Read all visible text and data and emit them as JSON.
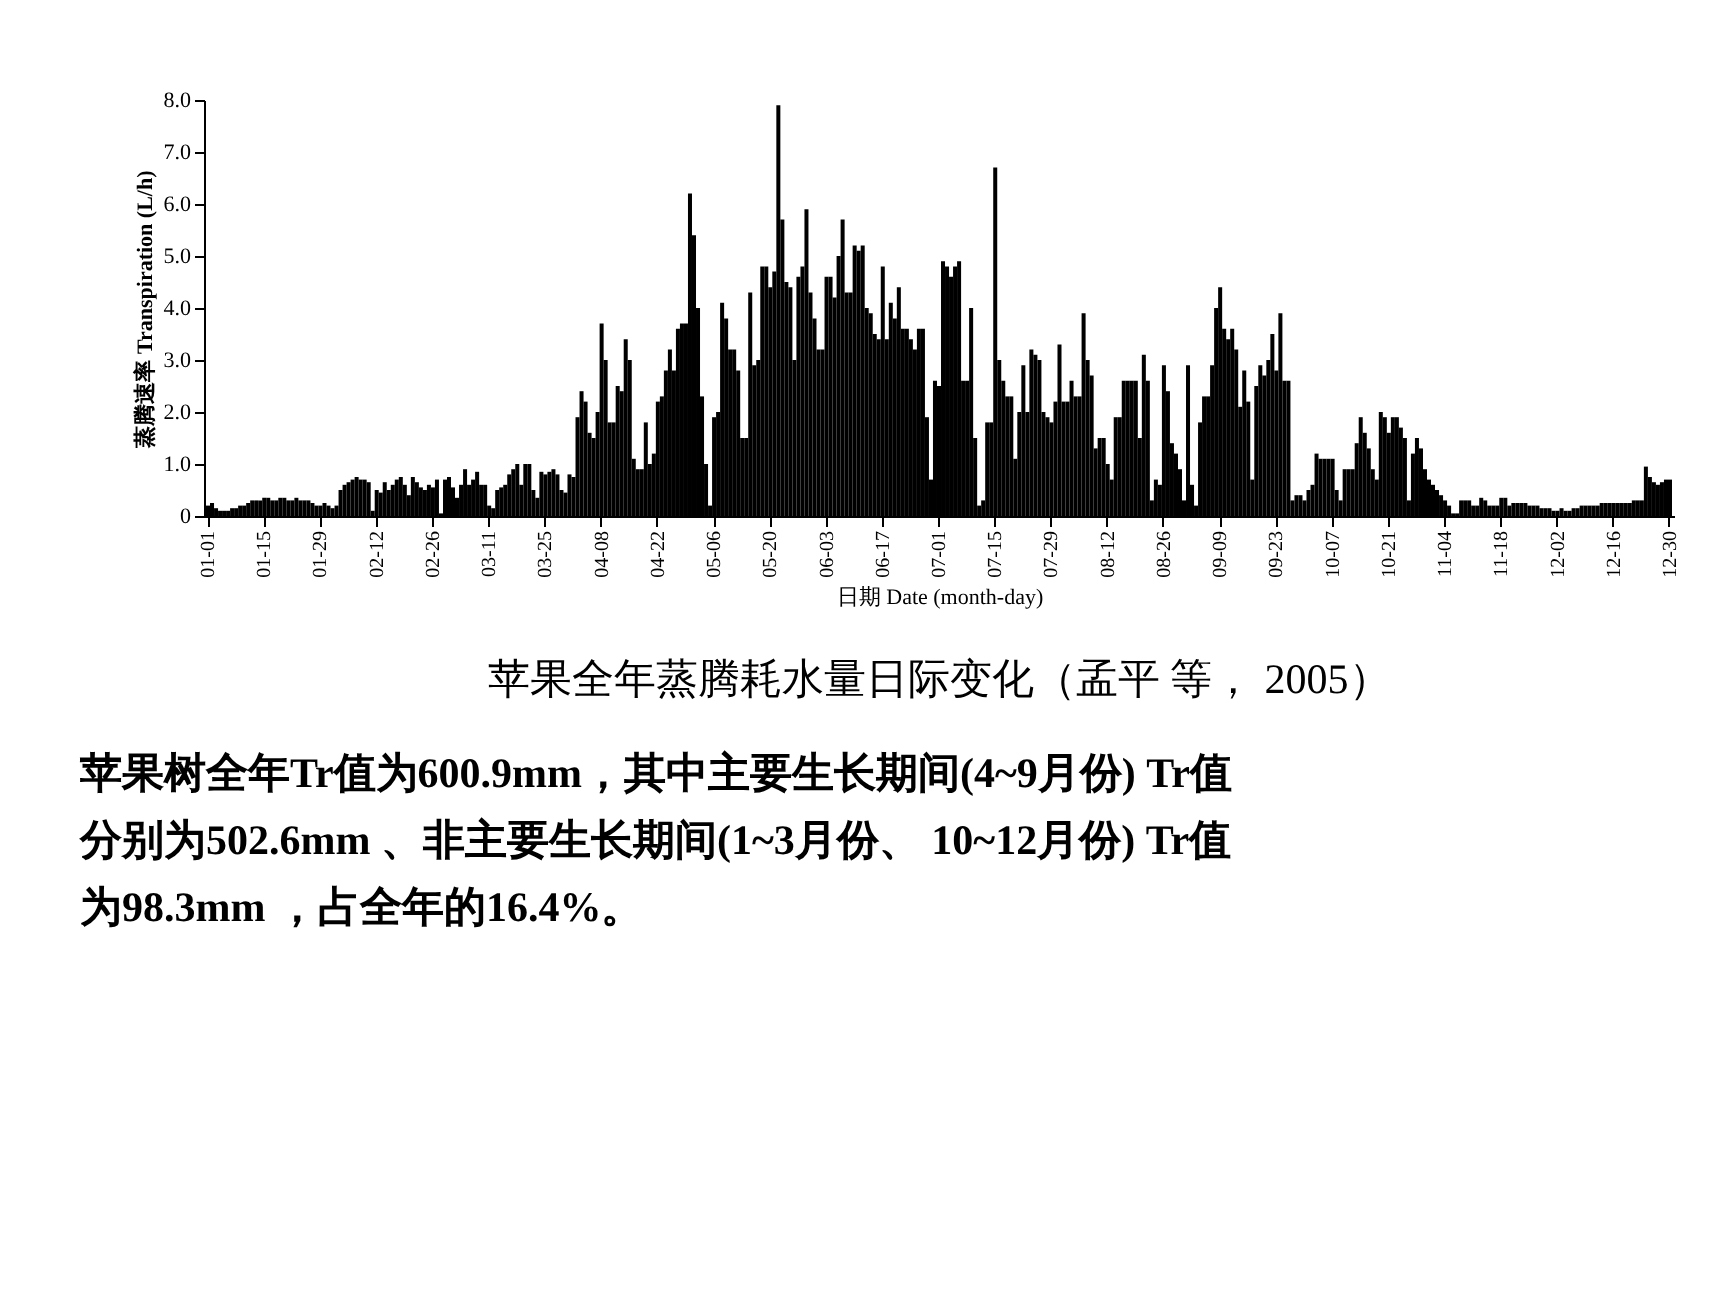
{
  "chart_data": {
    "type": "bar",
    "title": "苹果全年蒸腾耗水量日际变化（孟平 等， 2005）",
    "xlabel": "日期 Date (month-day)",
    "ylabel": "蒸腾速率 Transpiration (L/h)",
    "annotations": [
      "苹果树全年Tr值为600.9mm，其中主要生长期间(4~9月份) Tr值",
      "分别为502.6mm 、非主要生长期间(1~3月份、  10~12月份) Tr值",
      "为98.3mm ，占全年的16.4%。"
    ],
    "color": "#000000",
    "ylim": [
      0,
      8
    ],
    "yticks": [
      0,
      {
        "value": 1,
        "label": "1.0"
      },
      {
        "value": 2,
        "label": "2.0"
      },
      {
        "value": 3,
        "label": "3.0"
      },
      {
        "value": 4,
        "label": "4.0"
      },
      {
        "value": 5,
        "label": "5.0"
      },
      {
        "value": 6,
        "label": "6.0"
      },
      {
        "value": 7,
        "label": "7.0"
      },
      {
        "value": 8,
        "label": "8.0"
      }
    ],
    "categories": [
      "01-01",
      null,
      null,
      null,
      null,
      null,
      null,
      null,
      null,
      null,
      null,
      null,
      null,
      null,
      "01-15",
      null,
      null,
      null,
      null,
      null,
      null,
      null,
      null,
      null,
      null,
      null,
      null,
      null,
      "01-29",
      null,
      null,
      null,
      null,
      null,
      null,
      null,
      null,
      null,
      null,
      null,
      null,
      null,
      "02-12",
      null,
      null,
      null,
      null,
      null,
      null,
      null,
      null,
      null,
      null,
      null,
      null,
      null,
      "02-26",
      null,
      null,
      null,
      null,
      null,
      null,
      null,
      null,
      null,
      null,
      null,
      null,
      null,
      "03-11",
      null,
      null,
      null,
      null,
      null,
      null,
      null,
      null,
      null,
      null,
      null,
      null,
      null,
      "03-25",
      null,
      null,
      null,
      null,
      null,
      null,
      null,
      null,
      null,
      null,
      null,
      null,
      null,
      "04-08",
      null,
      null,
      null,
      null,
      null,
      null,
      null,
      null,
      null,
      null,
      null,
      null,
      null,
      "04-22",
      null,
      null,
      null,
      null,
      null,
      null,
      null,
      null,
      null,
      null,
      null,
      null,
      null,
      "05-06",
      null,
      null,
      null,
      null,
      null,
      null,
      null,
      null,
      null,
      null,
      null,
      null,
      null,
      "05-20",
      null,
      null,
      null,
      null,
      null,
      null,
      null,
      null,
      null,
      null,
      null,
      null,
      null,
      "06-03",
      null,
      null,
      null,
      null,
      null,
      null,
      null,
      null,
      null,
      null,
      null,
      null,
      null,
      "06-17",
      null,
      null,
      null,
      null,
      null,
      null,
      null,
      null,
      null,
      null,
      null,
      null,
      null,
      "07-01",
      null,
      null,
      null,
      null,
      null,
      null,
      null,
      null,
      null,
      null,
      null,
      null,
      null,
      "07-15",
      null,
      null,
      null,
      null,
      null,
      null,
      null,
      null,
      null,
      null,
      null,
      null,
      null,
      "07-29",
      null,
      null,
      null,
      null,
      null,
      null,
      null,
      null,
      null,
      null,
      null,
      null,
      null,
      "08-12",
      null,
      null,
      null,
      null,
      null,
      null,
      null,
      null,
      null,
      null,
      null,
      null,
      null,
      "08-26",
      null,
      null,
      null,
      null,
      null,
      null,
      null,
      null,
      null,
      null,
      null,
      null,
      null,
      "09-09",
      null,
      null,
      null,
      null,
      null,
      null,
      null,
      null,
      null,
      null,
      null,
      null,
      null,
      "09-23",
      null,
      null,
      null,
      null,
      null,
      null,
      null,
      null,
      null,
      null,
      null,
      null,
      null,
      "10-07",
      null,
      null,
      null,
      null,
      null,
      null,
      null,
      null,
      null,
      null,
      null,
      null,
      null,
      "10-21",
      null,
      null,
      null,
      null,
      null,
      null,
      null,
      null,
      null,
      null,
      null,
      null,
      null,
      "11-04",
      null,
      null,
      null,
      null,
      null,
      null,
      null,
      null,
      null,
      null,
      null,
      null,
      null,
      "11-18",
      null,
      null,
      null,
      null,
      null,
      null,
      null,
      null,
      null,
      null,
      null,
      null,
      null,
      "12-02",
      null,
      null,
      null,
      null,
      null,
      null,
      null,
      null,
      null,
      null,
      null,
      null,
      null,
      "12-16",
      null,
      null,
      null,
      null,
      null,
      null,
      null,
      null,
      null,
      null,
      null,
      null,
      null,
      "12-30"
    ],
    "values": [
      0.2,
      0.25,
      0.15,
      0.1,
      0.1,
      0.1,
      0.15,
      0.15,
      0.2,
      0.2,
      0.25,
      0.3,
      0.3,
      0.3,
      0.35,
      0.35,
      0.3,
      0.3,
      0.35,
      0.35,
      0.3,
      0.3,
      0.35,
      0.3,
      0.3,
      0.3,
      0.25,
      0.2,
      0.2,
      0.25,
      0.2,
      0.15,
      0.2,
      0.5,
      0.6,
      0.65,
      0.7,
      0.75,
      0.7,
      0.7,
      0.65,
      0.1,
      0.5,
      0.45,
      0.65,
      0.5,
      0.6,
      0.7,
      0.75,
      0.6,
      0.4,
      0.75,
      0.65,
      0.55,
      0.5,
      0.6,
      0.55,
      0.7,
      0.05,
      0.7,
      0.75,
      0.55,
      0.35,
      0.6,
      0.9,
      0.6,
      0.7,
      0.85,
      0.6,
      0.6,
      0.2,
      0.15,
      0.5,
      0.55,
      0.6,
      0.8,
      0.9,
      1.0,
      0.6,
      1.0,
      1.0,
      0.5,
      0.35,
      0.85,
      0.8,
      0.85,
      0.9,
      0.8,
      0.5,
      0.45,
      0.8,
      0.75,
      1.9,
      2.4,
      2.2,
      1.6,
      1.5,
      2.0,
      3.7,
      3.0,
      1.8,
      1.8,
      2.5,
      2.4,
      3.4,
      3.0,
      1.1,
      0.9,
      0.9,
      1.8,
      1.0,
      1.2,
      2.2,
      2.3,
      2.8,
      3.2,
      2.8,
      3.6,
      3.7,
      3.7,
      6.2,
      5.4,
      4.0,
      2.3,
      1.0,
      0.2,
      1.9,
      2.0,
      4.1,
      3.8,
      3.2,
      3.2,
      2.8,
      1.5,
      1.5,
      4.3,
      2.9,
      3.0,
      4.8,
      4.8,
      4.4,
      4.7,
      7.9,
      5.7,
      4.5,
      4.4,
      3.0,
      4.6,
      4.8,
      5.9,
      4.3,
      3.8,
      3.2,
      3.2,
      4.6,
      4.6,
      4.2,
      5.0,
      5.7,
      4.3,
      4.3,
      5.2,
      5.1,
      5.2,
      4.0,
      3.9,
      3.5,
      3.4,
      4.8,
      3.4,
      4.1,
      3.8,
      4.4,
      3.6,
      3.6,
      3.4,
      3.2,
      3.6,
      3.6,
      1.9,
      0.7,
      2.6,
      2.5,
      4.9,
      4.8,
      4.6,
      4.8,
      4.9,
      2.6,
      2.6,
      4.0,
      1.5,
      0.2,
      0.3,
      1.8,
      1.8,
      6.7,
      3.0,
      2.6,
      2.3,
      2.3,
      1.1,
      2.0,
      2.9,
      2.0,
      3.2,
      3.1,
      3.0,
      2.0,
      1.9,
      1.8,
      2.2,
      3.3,
      2.2,
      2.2,
      2.6,
      2.3,
      2.3,
      3.9,
      3.0,
      2.7,
      1.3,
      1.5,
      1.5,
      1.0,
      0.7,
      1.9,
      1.9,
      2.6,
      2.6,
      2.6,
      2.6,
      1.5,
      3.1,
      2.6,
      0.3,
      0.7,
      0.6,
      2.9,
      2.4,
      1.4,
      1.2,
      0.9,
      0.3,
      2.9,
      0.6,
      0.2,
      1.8,
      2.3,
      2.3,
      2.9,
      4.0,
      4.4,
      3.6,
      3.4,
      3.6,
      3.2,
      2.1,
      2.8,
      2.2,
      0.7,
      2.5,
      2.9,
      2.7,
      3.0,
      3.5,
      2.8,
      3.9,
      2.6,
      2.6,
      0.3,
      0.4,
      0.4,
      0.3,
      0.5,
      0.6,
      1.2,
      1.1,
      1.1,
      1.1,
      1.1,
      0.5,
      0.3,
      0.9,
      0.9,
      0.9,
      1.4,
      1.9,
      1.6,
      1.3,
      0.9,
      0.7,
      2.0,
      1.9,
      1.6,
      1.9,
      1.9,
      1.7,
      1.5,
      0.3,
      1.2,
      1.5,
      1.3,
      0.9,
      0.7,
      0.6,
      0.5,
      0.4,
      0.3,
      0.2,
      0.05,
      0.05,
      0.3,
      0.3,
      0.3,
      0.2,
      0.2,
      0.35,
      0.3,
      0.2,
      0.2,
      0.2,
      0.35,
      0.35,
      0.2,
      0.25,
      0.25,
      0.25,
      0.25,
      0.2,
      0.2,
      0.2,
      0.15,
      0.15,
      0.15,
      0.1,
      0.1,
      0.15,
      0.1,
      0.1,
      0.15,
      0.15,
      0.2,
      0.2,
      0.2,
      0.2,
      0.2,
      0.25,
      0.25,
      0.25,
      0.25,
      0.25,
      0.25,
      0.25,
      0.25,
      0.3,
      0.3,
      0.3,
      0.95,
      0.75,
      0.65,
      0.6,
      0.65,
      0.7,
      0.7
    ]
  }
}
